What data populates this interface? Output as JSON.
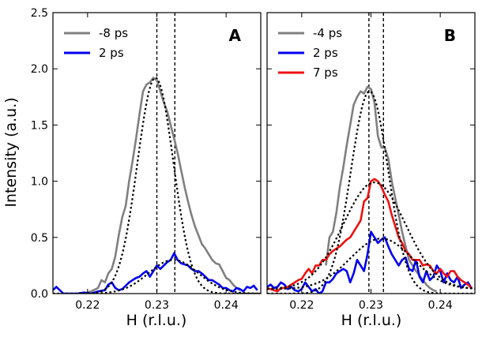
{
  "figure": {
    "ylabel": "Intensity (a.u.)",
    "xlabel": "H (r.l.u.)",
    "colors": {
      "gray": "#808080",
      "blue": "#0000ee",
      "red": "#ee1111",
      "fit": "#000000"
    }
  },
  "chart_data": [
    {
      "type": "line",
      "panel": "A",
      "xlabel": "H (r.l.u.)",
      "ylabel": "Intensity (a.u.)",
      "xlim": [
        0.215,
        0.245
      ],
      "ylim": [
        0.0,
        2.5
      ],
      "xticks": [
        0.22,
        0.23,
        0.24
      ],
      "xtick_labels": [
        "0.22",
        "0.23",
        "0.24"
      ],
      "yticks": [
        0.0,
        0.5,
        1.0,
        1.5,
        2.0,
        2.5
      ],
      "ytick_labels": [
        "0.0",
        "0.5",
        "1.0",
        "1.5",
        "2.0",
        "2.5"
      ],
      "vlines": [
        0.23,
        0.2326
      ],
      "legend_position": "top-left",
      "series": [
        {
          "name": "-8 ps",
          "color": "#808080",
          "x": [
            0.2185,
            0.2195,
            0.2205,
            0.2215,
            0.222,
            0.2225,
            0.223,
            0.2235,
            0.224,
            0.2245,
            0.225,
            0.2255,
            0.226,
            0.2265,
            0.227,
            0.2275,
            0.228,
            0.2285,
            0.229,
            0.2295,
            0.23,
            0.2305,
            0.231,
            0.2315,
            0.232,
            0.2325,
            0.233,
            0.2335,
            0.234,
            0.2345,
            0.235,
            0.2355,
            0.236,
            0.2365,
            0.237,
            0.2375,
            0.238,
            0.2385,
            0.239,
            0.2395,
            0.24,
            0.2405,
            0.241,
            0.2415,
            0.242
          ],
          "y": [
            0.0,
            0.0,
            0.02,
            0.05,
            0.12,
            0.1,
            0.18,
            0.22,
            0.33,
            0.52,
            0.68,
            0.78,
            1.0,
            1.18,
            1.38,
            1.6,
            1.8,
            1.86,
            1.88,
            1.92,
            1.9,
            1.8,
            1.7,
            1.62,
            1.5,
            1.38,
            1.25,
            1.1,
            0.95,
            0.82,
            0.7,
            0.6,
            0.52,
            0.44,
            0.4,
            0.35,
            0.3,
            0.27,
            0.26,
            0.2,
            0.14,
            0.12,
            0.08,
            0.05,
            0.03
          ]
        },
        {
          "name": "2 ps",
          "color": "#0000ee",
          "x": [
            0.2148,
            0.2155,
            0.2165,
            0.2175,
            0.2185,
            0.2195,
            0.2205,
            0.2215,
            0.2225,
            0.223,
            0.2235,
            0.224,
            0.2245,
            0.225,
            0.2255,
            0.226,
            0.2265,
            0.227,
            0.2275,
            0.228,
            0.2285,
            0.229,
            0.2295,
            0.23,
            0.2305,
            0.231,
            0.2315,
            0.232,
            0.2325,
            0.233,
            0.2335,
            0.234,
            0.2345,
            0.235,
            0.2355,
            0.236,
            0.2365,
            0.237,
            0.2375,
            0.238,
            0.2385,
            0.239,
            0.2395,
            0.24,
            0.2405,
            0.241,
            0.2415,
            0.242,
            0.2425,
            0.243,
            0.2435,
            0.244,
            0.2445
          ],
          "y": [
            0.02,
            0.06,
            0.0,
            0.0,
            0.0,
            0.01,
            0.0,
            0.02,
            0.03,
            0.08,
            0.1,
            0.05,
            0.03,
            0.04,
            0.07,
            0.1,
            0.12,
            0.14,
            0.15,
            0.18,
            0.2,
            0.15,
            0.2,
            0.25,
            0.22,
            0.25,
            0.28,
            0.3,
            0.36,
            0.3,
            0.27,
            0.26,
            0.25,
            0.22,
            0.2,
            0.2,
            0.18,
            0.15,
            0.12,
            0.12,
            0.1,
            0.08,
            0.05,
            0.05,
            0.03,
            0.02,
            0.05,
            0.04,
            0.02,
            0.06,
            0.05,
            0.07,
            0.03
          ]
        }
      ],
      "fits": [
        {
          "type": "gaussian",
          "center": 0.2298,
          "amplitude": 1.92,
          "sigma": 0.0026
        },
        {
          "type": "gaussian",
          "center": 0.2324,
          "amplitude": 0.3,
          "sigma": 0.0036
        }
      ]
    },
    {
      "type": "line",
      "panel": "B",
      "xlabel": "H (r.l.u.)",
      "xlim": [
        0.215,
        0.245
      ],
      "ylim": [
        0.0,
        2.5
      ],
      "xticks": [
        0.22,
        0.23,
        0.24
      ],
      "xtick_labels": [
        "0.22",
        "0.23",
        "0.24"
      ],
      "vlines": [
        0.2297,
        0.2318
      ],
      "legend_position": "top-left",
      "series": [
        {
          "name": "-4 ps",
          "color": "#808080",
          "x": [
            0.2235,
            0.224,
            0.2245,
            0.225,
            0.2255,
            0.226,
            0.2265,
            0.227,
            0.2275,
            0.228,
            0.2285,
            0.229,
            0.2295,
            0.23,
            0.2305,
            0.231,
            0.2315,
            0.232,
            0.2325,
            0.233,
            0.2335,
            0.234,
            0.2345,
            0.235,
            0.2355,
            0.236,
            0.2365,
            0.237,
            0.2375,
            0.238,
            0.2385,
            0.239,
            0.2395
          ],
          "y": [
            0.25,
            0.5,
            0.55,
            0.72,
            0.95,
            1.12,
            1.32,
            1.5,
            1.68,
            1.75,
            1.8,
            1.78,
            1.84,
            1.82,
            1.7,
            1.4,
            1.3,
            1.3,
            1.2,
            1.0,
            0.85,
            0.7,
            0.55,
            0.42,
            0.3,
            0.25,
            0.2,
            0.16,
            0.12,
            0.08,
            0.05,
            0.03,
            0.02
          ]
        },
        {
          "name": "2 ps",
          "color": "#0000ee",
          "x": [
            0.2148,
            0.2155,
            0.216,
            0.2165,
            0.217,
            0.2175,
            0.218,
            0.2185,
            0.219,
            0.2195,
            0.22,
            0.2205,
            0.221,
            0.2215,
            0.222,
            0.2225,
            0.223,
            0.2235,
            0.224,
            0.2245,
            0.225,
            0.2255,
            0.226,
            0.2265,
            0.227,
            0.2275,
            0.228,
            0.2285,
            0.229,
            0.2295,
            0.23,
            0.2305,
            0.231,
            0.2315,
            0.232,
            0.2325,
            0.233,
            0.2335,
            0.234,
            0.2345,
            0.235,
            0.2355,
            0.236,
            0.2365,
            0.237,
            0.2375,
            0.238,
            0.2385,
            0.239,
            0.2395,
            0.24,
            0.2405,
            0.241,
            0.2415,
            0.242,
            0.2425,
            0.243,
            0.2435,
            0.244,
            0.2445
          ],
          "y": [
            0.05,
            0.08,
            0.05,
            0.06,
            0.1,
            0.08,
            0.04,
            0.06,
            0.03,
            0.02,
            0.04,
            0.1,
            0.06,
            0.02,
            0.04,
            0.0,
            0.02,
            0.1,
            0.1,
            0.13,
            0.18,
            0.2,
            0.22,
            0.2,
            0.1,
            0.18,
            0.3,
            0.25,
            0.2,
            0.35,
            0.55,
            0.5,
            0.45,
            0.48,
            0.5,
            0.42,
            0.35,
            0.3,
            0.25,
            0.3,
            0.32,
            0.22,
            0.2,
            0.3,
            0.15,
            0.1,
            0.2,
            0.12,
            0.15,
            0.25,
            0.2,
            0.1,
            0.18,
            0.12,
            0.1,
            0.15,
            0.05,
            0.08,
            0.1,
            0.05
          ]
        },
        {
          "name": "7 ps",
          "color": "#ee1111",
          "x": [
            0.2148,
            0.2155,
            0.216,
            0.2165,
            0.217,
            0.2175,
            0.218,
            0.2185,
            0.219,
            0.2195,
            0.22,
            0.2205,
            0.221,
            0.2215,
            0.222,
            0.2225,
            0.223,
            0.2235,
            0.224,
            0.2245,
            0.225,
            0.2255,
            0.226,
            0.2265,
            0.227,
            0.2275,
            0.228,
            0.2285,
            0.229,
            0.2295,
            0.23,
            0.2305,
            0.231,
            0.2315,
            0.232,
            0.2325,
            0.233,
            0.2335,
            0.234,
            0.2345,
            0.235,
            0.2355,
            0.236,
            0.2365,
            0.237,
            0.2375,
            0.238,
            0.2385,
            0.239,
            0.2395,
            0.24,
            0.2405,
            0.241,
            0.2415,
            0.242,
            0.2425,
            0.243,
            0.2435,
            0.244,
            0.2445
          ],
          "y": [
            0.05,
            0.04,
            0.03,
            0.02,
            0.05,
            0.05,
            0.06,
            0.08,
            0.1,
            0.12,
            0.13,
            0.18,
            0.22,
            0.18,
            0.25,
            0.25,
            0.3,
            0.3,
            0.35,
            0.38,
            0.4,
            0.42,
            0.45,
            0.48,
            0.5,
            0.55,
            0.6,
            0.65,
            0.82,
            0.85,
            1.0,
            1.02,
            1.0,
            0.95,
            0.88,
            0.82,
            0.7,
            0.6,
            0.5,
            0.45,
            0.38,
            0.35,
            0.3,
            0.3,
            0.3,
            0.25,
            0.26,
            0.25,
            0.2,
            0.18,
            0.22,
            0.18,
            0.15,
            0.2,
            0.2,
            0.15,
            0.12,
            0.1,
            0.08,
            0.05
          ]
        }
      ],
      "fits": [
        {
          "type": "gaussian",
          "center": 0.2298,
          "amplitude": 1.8,
          "sigma": 0.0027
        },
        {
          "type": "gaussian",
          "center": 0.2305,
          "amplitude": 0.95,
          "sigma": 0.0045,
          "offset": 0.04
        },
        {
          "type": "gaussian",
          "center": 0.2315,
          "amplitude": 0.45,
          "sigma": 0.0045,
          "offset": 0.04
        }
      ]
    }
  ]
}
